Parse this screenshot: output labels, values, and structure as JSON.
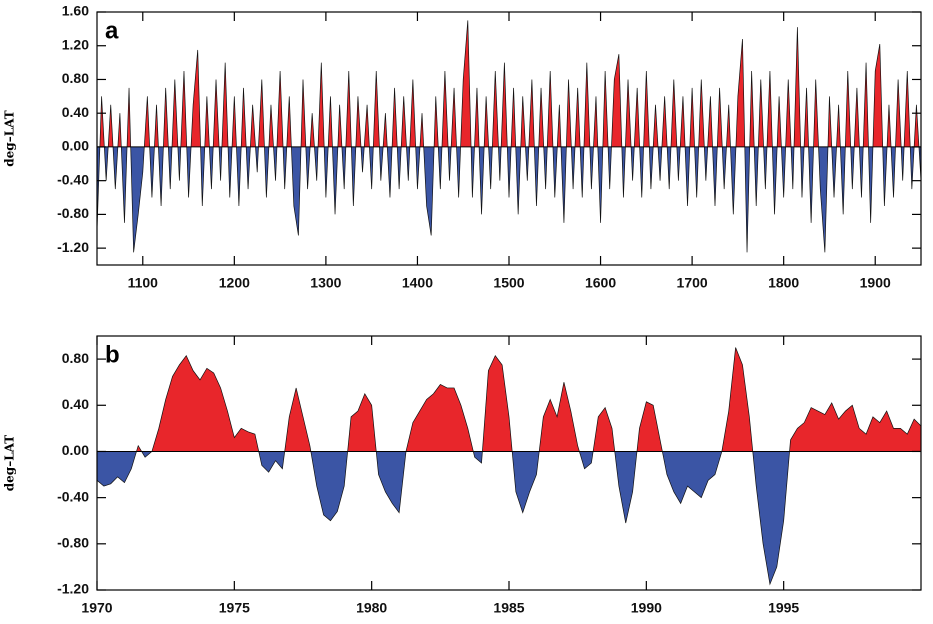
{
  "chart_data": [
    {
      "type": "area",
      "label": "a",
      "y_label": "deg–LAT",
      "positive_color": "#e8262b",
      "negative_color": "#3b55a5",
      "xlim": [
        1050,
        1950
      ],
      "ylim": [
        -1.4,
        1.6
      ],
      "xticks": [
        1100,
        1200,
        1300,
        1400,
        1500,
        1600,
        1700,
        1800,
        1900
      ],
      "yticks": [
        {
          "value": -1.2,
          "label": "-1.20"
        },
        {
          "value": -0.8,
          "label": "-0.80"
        },
        {
          "value": -0.4,
          "label": "-0.40"
        },
        {
          "value": 0,
          "label": "0.00"
        },
        {
          "value": 0.4,
          "label": "0.40"
        },
        {
          "value": 0.8,
          "label": "0.80"
        },
        {
          "value": 1.2,
          "label": "1.20"
        },
        {
          "value": 1.6,
          "label": "1.60"
        }
      ],
      "x": [
        1050,
        1055,
        1060,
        1065,
        1070,
        1075,
        1080,
        1085,
        1090,
        1095,
        1100,
        1105,
        1110,
        1115,
        1120,
        1125,
        1130,
        1135,
        1140,
        1145,
        1150,
        1155,
        1160,
        1165,
        1170,
        1175,
        1180,
        1185,
        1190,
        1195,
        1200,
        1205,
        1210,
        1215,
        1220,
        1225,
        1230,
        1235,
        1240,
        1245,
        1250,
        1255,
        1260,
        1265,
        1270,
        1275,
        1280,
        1285,
        1290,
        1295,
        1300,
        1305,
        1310,
        1315,
        1320,
        1325,
        1330,
        1335,
        1340,
        1345,
        1350,
        1355,
        1360,
        1365,
        1370,
        1375,
        1380,
        1385,
        1390,
        1395,
        1400,
        1405,
        1410,
        1415,
        1420,
        1425,
        1430,
        1435,
        1440,
        1445,
        1450,
        1455,
        1460,
        1465,
        1470,
        1475,
        1480,
        1485,
        1490,
        1495,
        1500,
        1505,
        1510,
        1515,
        1520,
        1525,
        1530,
        1535,
        1540,
        1545,
        1550,
        1555,
        1560,
        1565,
        1570,
        1575,
        1580,
        1585,
        1590,
        1595,
        1600,
        1605,
        1610,
        1615,
        1620,
        1625,
        1630,
        1635,
        1640,
        1645,
        1650,
        1655,
        1660,
        1665,
        1670,
        1675,
        1680,
        1685,
        1690,
        1695,
        1700,
        1705,
        1710,
        1715,
        1720,
        1725,
        1730,
        1735,
        1740,
        1745,
        1750,
        1755,
        1760,
        1765,
        1770,
        1775,
        1780,
        1785,
        1790,
        1795,
        1800,
        1805,
        1810,
        1815,
        1820,
        1825,
        1830,
        1835,
        1840,
        1845,
        1850,
        1855,
        1860,
        1865,
        1870,
        1875,
        1880,
        1885,
        1890,
        1895,
        1900,
        1905,
        1910,
        1915,
        1920,
        1925,
        1930,
        1935,
        1940,
        1945,
        1950
      ],
      "values": [
        -1.0,
        0.6,
        -0.4,
        0.5,
        -0.5,
        0.4,
        -0.9,
        0.7,
        -1.25,
        -0.8,
        -0.3,
        0.6,
        -0.6,
        0.5,
        -0.7,
        0.7,
        -0.5,
        0.8,
        -0.4,
        0.9,
        -0.6,
        0.5,
        1.15,
        -0.7,
        0.6,
        -0.5,
        0.8,
        -0.4,
        1.0,
        -0.6,
        0.6,
        -0.7,
        0.7,
        -0.5,
        0.5,
        -0.3,
        0.8,
        -0.6,
        0.5,
        -0.4,
        0.9,
        -0.5,
        0.6,
        -0.7,
        -1.05,
        0.8,
        -0.5,
        0.4,
        -0.4,
        1.0,
        -0.6,
        0.6,
        -0.8,
        0.5,
        -0.5,
        0.9,
        -0.7,
        0.6,
        -0.3,
        0.5,
        -0.5,
        0.9,
        -0.4,
        0.4,
        -0.6,
        0.7,
        -0.5,
        0.6,
        -0.4,
        0.8,
        -0.5,
        0.4,
        -0.7,
        -1.05,
        0.6,
        -0.5,
        0.9,
        -0.4,
        0.7,
        -0.6,
        0.8,
        1.5,
        -0.6,
        0.7,
        -0.8,
        0.6,
        -0.5,
        0.9,
        -0.4,
        1.0,
        -0.6,
        0.7,
        -0.8,
        0.6,
        -0.4,
        0.8,
        -0.7,
        0.7,
        -0.5,
        0.9,
        -0.6,
        0.5,
        -0.9,
        0.8,
        -0.5,
        0.7,
        -0.6,
        1.0,
        -0.5,
        0.6,
        -0.9,
        0.9,
        -0.5,
        0.8,
        1.1,
        -0.6,
        0.8,
        -0.4,
        0.7,
        -0.6,
        0.9,
        -0.5,
        0.5,
        -0.4,
        0.6,
        -0.5,
        0.8,
        -0.4,
        0.6,
        -0.7,
        0.7,
        -0.6,
        0.8,
        -0.4,
        0.6,
        -0.7,
        0.7,
        -0.5,
        0.5,
        -0.8,
        0.6,
        1.28,
        -1.25,
        0.9,
        -0.7,
        0.8,
        -0.5,
        0.9,
        -0.8,
        0.6,
        -0.6,
        0.8,
        -0.5,
        1.42,
        -0.6,
        0.7,
        -0.9,
        0.8,
        -0.5,
        -1.25,
        0.6,
        -0.6,
        0.5,
        -0.8,
        0.9,
        -0.5,
        0.7,
        -0.6,
        1.0,
        -0.9,
        0.9,
        1.22,
        -0.7,
        0.5,
        -0.6,
        0.8,
        -0.4,
        0.9,
        -0.5,
        0.5,
        -0.4
      ]
    },
    {
      "type": "area",
      "label": "b",
      "y_label": "deg–LAT",
      "positive_color": "#e8262b",
      "negative_color": "#3b55a5",
      "xlim": [
        1970,
        2000
      ],
      "ylim": [
        -1.2,
        1.0
      ],
      "xticks": [
        1970,
        1975,
        1980,
        1985,
        1990,
        1995
      ],
      "yticks": [
        {
          "value": -1.2,
          "label": "-1.20"
        },
        {
          "value": -0.8,
          "label": "-0.80"
        },
        {
          "value": -0.4,
          "label": "-0.40"
        },
        {
          "value": 0,
          "label": "0.00"
        },
        {
          "value": 0.4,
          "label": "0.40"
        },
        {
          "value": 0.8,
          "label": "0.80"
        }
      ],
      "x": [
        1970,
        1970.25,
        1970.5,
        1970.75,
        1971,
        1971.25,
        1971.5,
        1971.75,
        1972,
        1972.25,
        1972.5,
        1972.75,
        1973,
        1973.25,
        1973.5,
        1973.75,
        1974,
        1974.25,
        1974.5,
        1974.75,
        1975,
        1975.25,
        1975.5,
        1975.75,
        1976,
        1976.25,
        1976.5,
        1976.75,
        1977,
        1977.25,
        1977.5,
        1977.75,
        1978,
        1978.25,
        1978.5,
        1978.75,
        1979,
        1979.25,
        1979.5,
        1979.75,
        1980,
        1980.25,
        1980.5,
        1980.75,
        1981,
        1981.25,
        1981.5,
        1981.75,
        1982,
        1982.25,
        1982.5,
        1982.75,
        1983,
        1983.25,
        1983.5,
        1983.75,
        1984,
        1984.25,
        1984.5,
        1984.75,
        1985,
        1985.25,
        1985.5,
        1985.75,
        1986,
        1986.25,
        1986.5,
        1986.75,
        1987,
        1987.25,
        1987.5,
        1987.75,
        1988,
        1988.25,
        1988.5,
        1988.75,
        1989,
        1989.25,
        1989.5,
        1989.75,
        1990,
        1990.25,
        1990.5,
        1990.75,
        1991,
        1991.25,
        1991.5,
        1991.75,
        1992,
        1992.25,
        1992.5,
        1992.75,
        1993,
        1993.25,
        1993.5,
        1993.75,
        1994,
        1994.25,
        1994.5,
        1994.75,
        1995,
        1995.25,
        1995.5,
        1995.75,
        1996,
        1996.25,
        1996.5,
        1996.75,
        1997,
        1997.25,
        1997.5,
        1997.75,
        1998,
        1998.25,
        1998.5,
        1998.75,
        1999,
        1999.25,
        1999.5,
        1999.75,
        2000
      ],
      "values": [
        -0.25,
        -0.3,
        -0.28,
        -0.22,
        -0.27,
        -0.15,
        0.05,
        -0.05,
        0.0,
        0.2,
        0.45,
        0.65,
        0.75,
        0.83,
        0.7,
        0.62,
        0.72,
        0.68,
        0.55,
        0.35,
        0.12,
        0.2,
        0.17,
        0.15,
        -0.12,
        -0.18,
        -0.08,
        -0.15,
        0.3,
        0.55,
        0.3,
        0.05,
        -0.3,
        -0.55,
        -0.6,
        -0.52,
        -0.3,
        0.3,
        0.35,
        0.5,
        0.4,
        -0.2,
        -0.35,
        -0.45,
        -0.53,
        0.0,
        0.25,
        0.35,
        0.45,
        0.5,
        0.58,
        0.55,
        0.55,
        0.4,
        0.2,
        -0.05,
        -0.1,
        0.7,
        0.83,
        0.75,
        0.3,
        -0.35,
        -0.53,
        -0.35,
        -0.2,
        0.3,
        0.45,
        0.3,
        0.6,
        0.35,
        0.05,
        -0.15,
        -0.1,
        0.3,
        0.38,
        0.2,
        -0.3,
        -0.62,
        -0.35,
        0.2,
        0.43,
        0.4,
        0.1,
        -0.2,
        -0.35,
        -0.45,
        -0.3,
        -0.35,
        -0.4,
        -0.25,
        -0.2,
        0.0,
        0.35,
        0.9,
        0.75,
        0.3,
        -0.3,
        -0.8,
        -1.15,
        -1.0,
        -0.6,
        0.1,
        0.2,
        0.25,
        0.38,
        0.35,
        0.32,
        0.42,
        0.28,
        0.35,
        0.4,
        0.2,
        0.15,
        0.3,
        0.25,
        0.35,
        0.2,
        0.2,
        0.15,
        0.28,
        0.22
      ]
    }
  ]
}
